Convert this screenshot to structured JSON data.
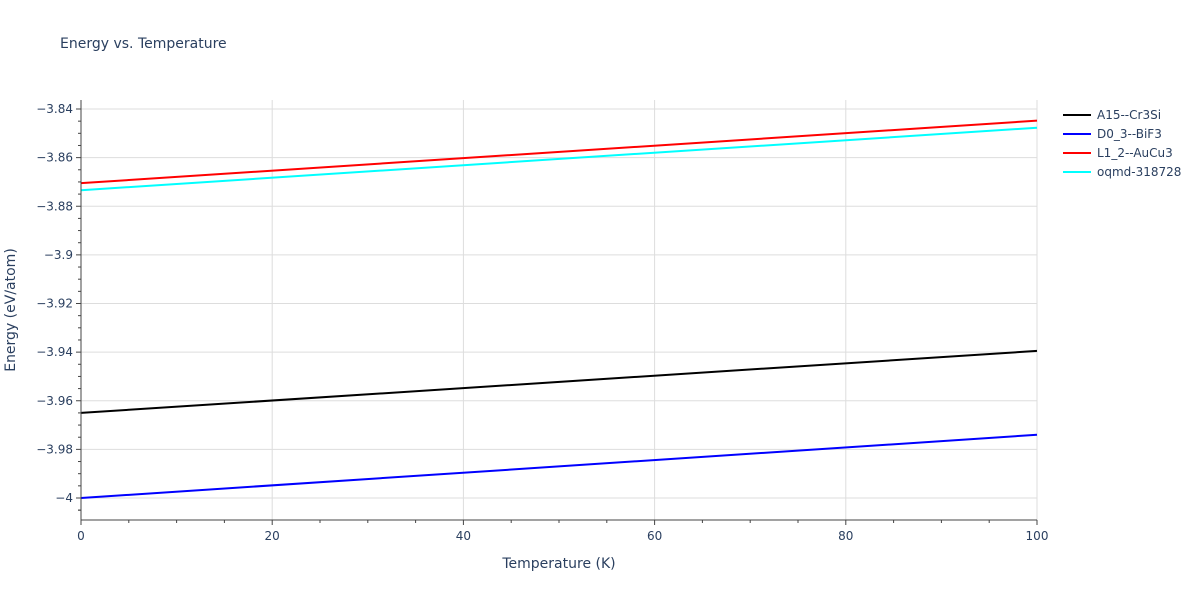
{
  "chart_data": {
    "type": "line",
    "title": "Energy vs. Temperature",
    "xlabel": "Temperature (K)",
    "ylabel": "Energy (eV/atom)",
    "xlim": [
      0,
      100
    ],
    "ylim": [
      -4.0045,
      -3.8372
    ],
    "x_ticks": [
      0,
      20,
      40,
      60,
      80,
      100
    ],
    "y_ticks": [
      -3.84,
      -3.86,
      -3.88,
      -3.9,
      -3.92,
      -3.94,
      -3.96,
      -3.98,
      -4
    ],
    "x_tick_labels": [
      "0",
      "20",
      "40",
      "60",
      "80",
      "100"
    ],
    "y_tick_labels": [
      "−3.84",
      "−3.86",
      "−3.88",
      "−3.9",
      "−3.92",
      "−3.94",
      "−3.96",
      "−3.98",
      "−4"
    ],
    "grid": true,
    "legend_position": "right-top",
    "series": [
      {
        "name": "A15--Cr3Si",
        "color": "#000000",
        "x": [
          0,
          100
        ],
        "values": [
          -3.965,
          -3.9395
        ]
      },
      {
        "name": "D0_3--BiF3",
        "color": "#0000ff",
        "x": [
          0,
          100
        ],
        "values": [
          -4.0,
          -3.974
        ]
      },
      {
        "name": "L1_2--AuCu3",
        "color": "#ff0000",
        "x": [
          0,
          100
        ],
        "values": [
          -3.8705,
          -3.8448
        ]
      },
      {
        "name": "oqmd-318728",
        "color": "#00ffff",
        "x": [
          0,
          100
        ],
        "values": [
          -3.8734,
          -3.8477
        ]
      }
    ]
  }
}
